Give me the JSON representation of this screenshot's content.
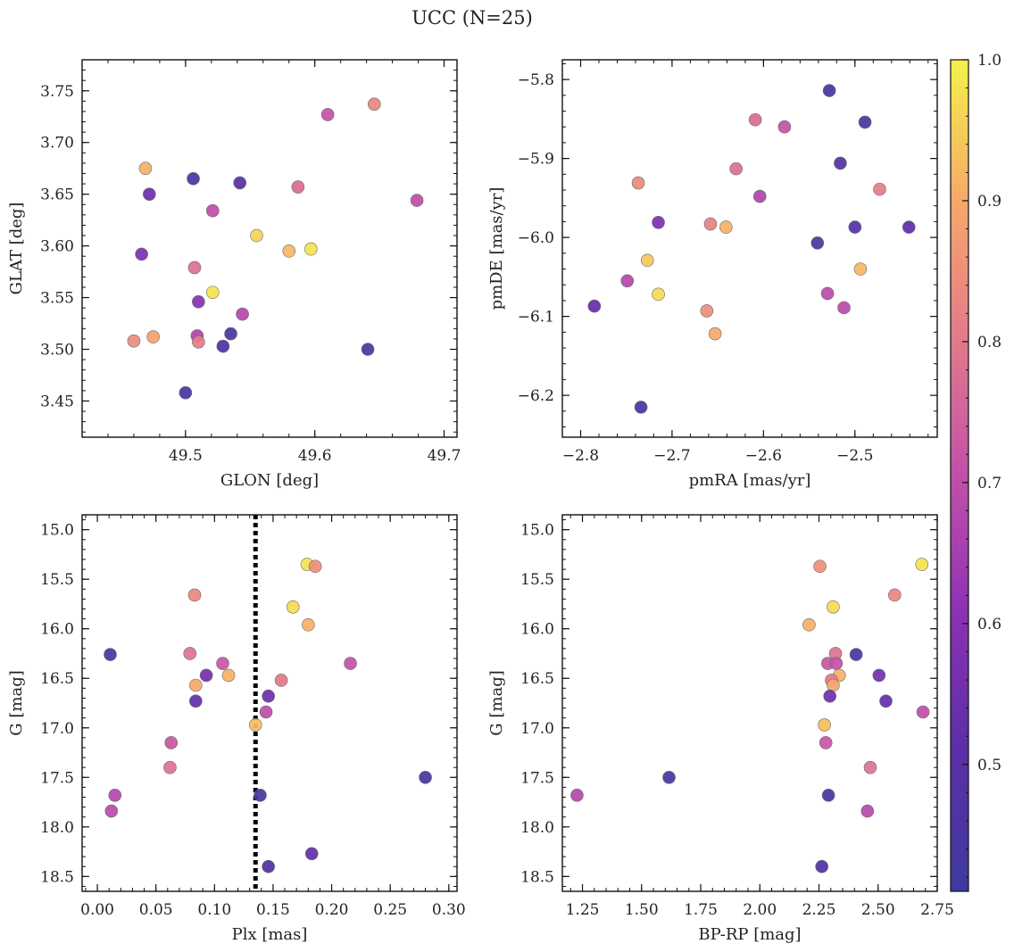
{
  "title": "UCC (N=25)",
  "chart_data": [
    {
      "type": "scatter",
      "id": "glon-glat",
      "xlabel": "GLON [deg]",
      "ylabel": "GLAT [deg]",
      "xlim": [
        49.42,
        49.71
      ],
      "ylim": [
        3.415,
        3.78
      ],
      "xticks": [
        49.5,
        49.6,
        49.7
      ],
      "xtick_labels": [
        "49.5",
        "49.6",
        "49.7"
      ],
      "yticks": [
        3.45,
        3.5,
        3.55,
        3.6,
        3.65,
        3.7,
        3.75
      ],
      "ytick_labels": [
        "3.45",
        "3.50",
        "3.55",
        "3.60",
        "3.65",
        "3.70",
        "3.75"
      ],
      "points": [
        {
          "x": 49.61,
          "y": 3.727,
          "c": 0.71
        },
        {
          "x": 49.646,
          "y": 3.737,
          "c": 0.83
        },
        {
          "x": 49.469,
          "y": 3.675,
          "c": 0.91
        },
        {
          "x": 49.506,
          "y": 3.665,
          "c": 0.44
        },
        {
          "x": 49.542,
          "y": 3.661,
          "c": 0.51
        },
        {
          "x": 49.587,
          "y": 3.657,
          "c": 0.77
        },
        {
          "x": 49.472,
          "y": 3.65,
          "c": 0.55
        },
        {
          "x": 49.679,
          "y": 3.644,
          "c": 0.7
        },
        {
          "x": 49.521,
          "y": 3.634,
          "c": 0.7
        },
        {
          "x": 49.555,
          "y": 3.61,
          "c": 0.96
        },
        {
          "x": 49.58,
          "y": 3.595,
          "c": 0.92
        },
        {
          "x": 49.597,
          "y": 3.597,
          "c": 0.98
        },
        {
          "x": 49.466,
          "y": 3.592,
          "c": 0.58
        },
        {
          "x": 49.507,
          "y": 3.579,
          "c": 0.78
        },
        {
          "x": 49.521,
          "y": 3.555,
          "c": 0.98
        },
        {
          "x": 49.51,
          "y": 3.546,
          "c": 0.6
        },
        {
          "x": 49.544,
          "y": 3.534,
          "c": 0.68
        },
        {
          "x": 49.535,
          "y": 3.515,
          "c": 0.46
        },
        {
          "x": 49.509,
          "y": 3.513,
          "c": 0.67
        },
        {
          "x": 49.475,
          "y": 3.512,
          "c": 0.89
        },
        {
          "x": 49.46,
          "y": 3.508,
          "c": 0.84
        },
        {
          "x": 49.51,
          "y": 3.507,
          "c": 0.81
        },
        {
          "x": 49.529,
          "y": 3.503,
          "c": 0.47
        },
        {
          "x": 49.641,
          "y": 3.5,
          "c": 0.44
        },
        {
          "x": 49.5,
          "y": 3.458,
          "c": 0.45
        }
      ]
    },
    {
      "type": "scatter",
      "id": "pmra-pmde",
      "xlabel": "pmRA [mas/yr]",
      "ylabel": "pmDE [mas/yr]",
      "xlim": [
        -2.82,
        -2.41
      ],
      "ylim": [
        -6.253,
        -5.775
      ],
      "xticks": [
        -2.8,
        -2.7,
        -2.6,
        -2.5
      ],
      "xtick_labels": [
        "−2.8",
        "−2.7",
        "−2.6",
        "−2.5"
      ],
      "yticks": [
        -6.2,
        -6.1,
        -6.0,
        -5.9,
        -5.8
      ],
      "ytick_labels": [
        "−6.2",
        "−6.1",
        "−6.0",
        "−5.9",
        "−5.8"
      ],
      "points": [
        {
          "x": -2.528,
          "y": -5.814,
          "c": 0.45
        },
        {
          "x": -2.609,
          "y": -5.851,
          "c": 0.77
        },
        {
          "x": -2.577,
          "y": -5.86,
          "c": 0.71
        },
        {
          "x": -2.489,
          "y": -5.854,
          "c": 0.45
        },
        {
          "x": -2.516,
          "y": -5.906,
          "c": 0.49
        },
        {
          "x": -2.63,
          "y": -5.913,
          "c": 0.78
        },
        {
          "x": -2.737,
          "y": -5.931,
          "c": 0.84
        },
        {
          "x": -2.473,
          "y": -5.939,
          "c": 0.81
        },
        {
          "x": -2.604,
          "y": -5.948,
          "c": 0.67
        },
        {
          "x": -2.715,
          "y": -5.981,
          "c": 0.58
        },
        {
          "x": -2.658,
          "y": -5.983,
          "c": 0.82
        },
        {
          "x": -2.641,
          "y": -5.987,
          "c": 0.91
        },
        {
          "x": -2.5,
          "y": -5.987,
          "c": 0.49
        },
        {
          "x": -2.441,
          "y": -5.987,
          "c": 0.52
        },
        {
          "x": -2.541,
          "y": -6.007,
          "c": 0.44
        },
        {
          "x": -2.727,
          "y": -6.029,
          "c": 0.94
        },
        {
          "x": -2.494,
          "y": -6.04,
          "c": 0.92
        },
        {
          "x": -2.749,
          "y": -6.055,
          "c": 0.68
        },
        {
          "x": -2.715,
          "y": -6.072,
          "c": 0.97
        },
        {
          "x": -2.53,
          "y": -6.071,
          "c": 0.69
        },
        {
          "x": -2.512,
          "y": -6.089,
          "c": 0.69
        },
        {
          "x": -2.785,
          "y": -6.087,
          "c": 0.53
        },
        {
          "x": -2.662,
          "y": -6.093,
          "c": 0.85
        },
        {
          "x": -2.653,
          "y": -6.122,
          "c": 0.9
        },
        {
          "x": -2.734,
          "y": -6.215,
          "c": 0.44
        }
      ]
    },
    {
      "type": "scatter",
      "id": "plx-g",
      "xlabel": "Plx [mas]",
      "ylabel": "G [mag]",
      "xlim": [
        -0.013,
        0.307
      ],
      "ylim": [
        18.65,
        14.85
      ],
      "xticks": [
        0.0,
        0.05,
        0.1,
        0.15,
        0.2,
        0.25,
        0.3
      ],
      "xtick_labels": [
        "0.00",
        "0.05",
        "0.10",
        "0.15",
        "0.20",
        "0.25",
        "0.30"
      ],
      "yticks": [
        15.0,
        15.5,
        16.0,
        16.5,
        17.0,
        17.5,
        18.0,
        18.5
      ],
      "ytick_labels": [
        "15.0",
        "15.5",
        "16.0",
        "16.5",
        "17.0",
        "17.5",
        "18.0",
        "18.5"
      ],
      "vline": 0.135,
      "points": [
        {
          "x": 0.179,
          "y": 15.35,
          "c": 0.98
        },
        {
          "x": 0.186,
          "y": 15.37,
          "c": 0.85
        },
        {
          "x": 0.083,
          "y": 15.66,
          "c": 0.83
        },
        {
          "x": 0.167,
          "y": 15.78,
          "c": 0.97
        },
        {
          "x": 0.18,
          "y": 15.96,
          "c": 0.91
        },
        {
          "x": 0.011,
          "y": 16.26,
          "c": 0.46
        },
        {
          "x": 0.079,
          "y": 16.25,
          "c": 0.79
        },
        {
          "x": 0.107,
          "y": 16.35,
          "c": 0.72
        },
        {
          "x": 0.216,
          "y": 16.35,
          "c": 0.71
        },
        {
          "x": 0.093,
          "y": 16.47,
          "c": 0.56
        },
        {
          "x": 0.112,
          "y": 16.47,
          "c": 0.91
        },
        {
          "x": 0.157,
          "y": 16.52,
          "c": 0.8
        },
        {
          "x": 0.084,
          "y": 16.57,
          "c": 0.9
        },
        {
          "x": 0.146,
          "y": 16.68,
          "c": 0.55
        },
        {
          "x": 0.084,
          "y": 16.73,
          "c": 0.53
        },
        {
          "x": 0.144,
          "y": 16.84,
          "c": 0.7
        },
        {
          "x": 0.135,
          "y": 16.97,
          "c": 0.93
        },
        {
          "x": 0.063,
          "y": 17.15,
          "c": 0.72
        },
        {
          "x": 0.062,
          "y": 17.4,
          "c": 0.79
        },
        {
          "x": 0.28,
          "y": 17.5,
          "c": 0.45
        },
        {
          "x": 0.015,
          "y": 17.68,
          "c": 0.68
        },
        {
          "x": 0.139,
          "y": 17.68,
          "c": 0.45
        },
        {
          "x": 0.012,
          "y": 17.84,
          "c": 0.69
        },
        {
          "x": 0.183,
          "y": 18.27,
          "c": 0.53
        },
        {
          "x": 0.146,
          "y": 18.4,
          "c": 0.48
        }
      ]
    },
    {
      "type": "scatter",
      "id": "bprp-g",
      "xlabel": "BP-RP [mag]",
      "ylabel": "G [mag]",
      "xlim": [
        1.165,
        2.75
      ],
      "ylim": [
        18.65,
        14.85
      ],
      "xticks": [
        1.25,
        1.5,
        1.75,
        2.0,
        2.25,
        2.5,
        2.75
      ],
      "xtick_labels": [
        "1.25",
        "1.50",
        "1.75",
        "2.00",
        "2.25",
        "2.50",
        "2.75"
      ],
      "yticks": [
        15.0,
        15.5,
        16.0,
        16.5,
        17.0,
        17.5,
        18.0,
        18.5
      ],
      "ytick_labels": [
        "15.0",
        "15.5",
        "16.0",
        "16.5",
        "17.0",
        "17.5",
        "18.0",
        "18.5"
      ],
      "points": [
        {
          "x": 2.685,
          "y": 15.35,
          "c": 0.98
        },
        {
          "x": 2.254,
          "y": 15.37,
          "c": 0.85
        },
        {
          "x": 2.57,
          "y": 15.66,
          "c": 0.83
        },
        {
          "x": 2.31,
          "y": 15.78,
          "c": 0.97
        },
        {
          "x": 2.208,
          "y": 15.96,
          "c": 0.91
        },
        {
          "x": 2.407,
          "y": 16.26,
          "c": 0.46
        },
        {
          "x": 2.32,
          "y": 16.25,
          "c": 0.79
        },
        {
          "x": 2.287,
          "y": 16.35,
          "c": 0.72
        },
        {
          "x": 2.323,
          "y": 16.35,
          "c": 0.71
        },
        {
          "x": 2.504,
          "y": 16.47,
          "c": 0.56
        },
        {
          "x": 2.336,
          "y": 16.47,
          "c": 0.91
        },
        {
          "x": 2.303,
          "y": 16.52,
          "c": 0.8
        },
        {
          "x": 2.31,
          "y": 16.57,
          "c": 0.9
        },
        {
          "x": 2.296,
          "y": 16.68,
          "c": 0.55
        },
        {
          "x": 2.533,
          "y": 16.73,
          "c": 0.53
        },
        {
          "x": 2.69,
          "y": 16.84,
          "c": 0.7
        },
        {
          "x": 2.273,
          "y": 16.97,
          "c": 0.93
        },
        {
          "x": 2.279,
          "y": 17.15,
          "c": 0.72
        },
        {
          "x": 2.467,
          "y": 17.4,
          "c": 0.79
        },
        {
          "x": 1.616,
          "y": 17.5,
          "c": 0.45
        },
        {
          "x": 1.227,
          "y": 17.68,
          "c": 0.68
        },
        {
          "x": 2.29,
          "y": 17.68,
          "c": 0.45
        },
        {
          "x": 2.455,
          "y": 17.84,
          "c": 0.69
        },
        {
          "x": 2.262,
          "y": 18.4,
          "c": 0.48
        }
      ]
    }
  ],
  "colorbar": {
    "range": [
      0.41,
      1.0
    ],
    "ticks": [
      0.5,
      0.6,
      0.7,
      0.8,
      0.9,
      1.0
    ],
    "tick_labels": [
      "0.5",
      "0.6",
      "0.7",
      "0.8",
      "0.9",
      "1.0"
    ]
  }
}
